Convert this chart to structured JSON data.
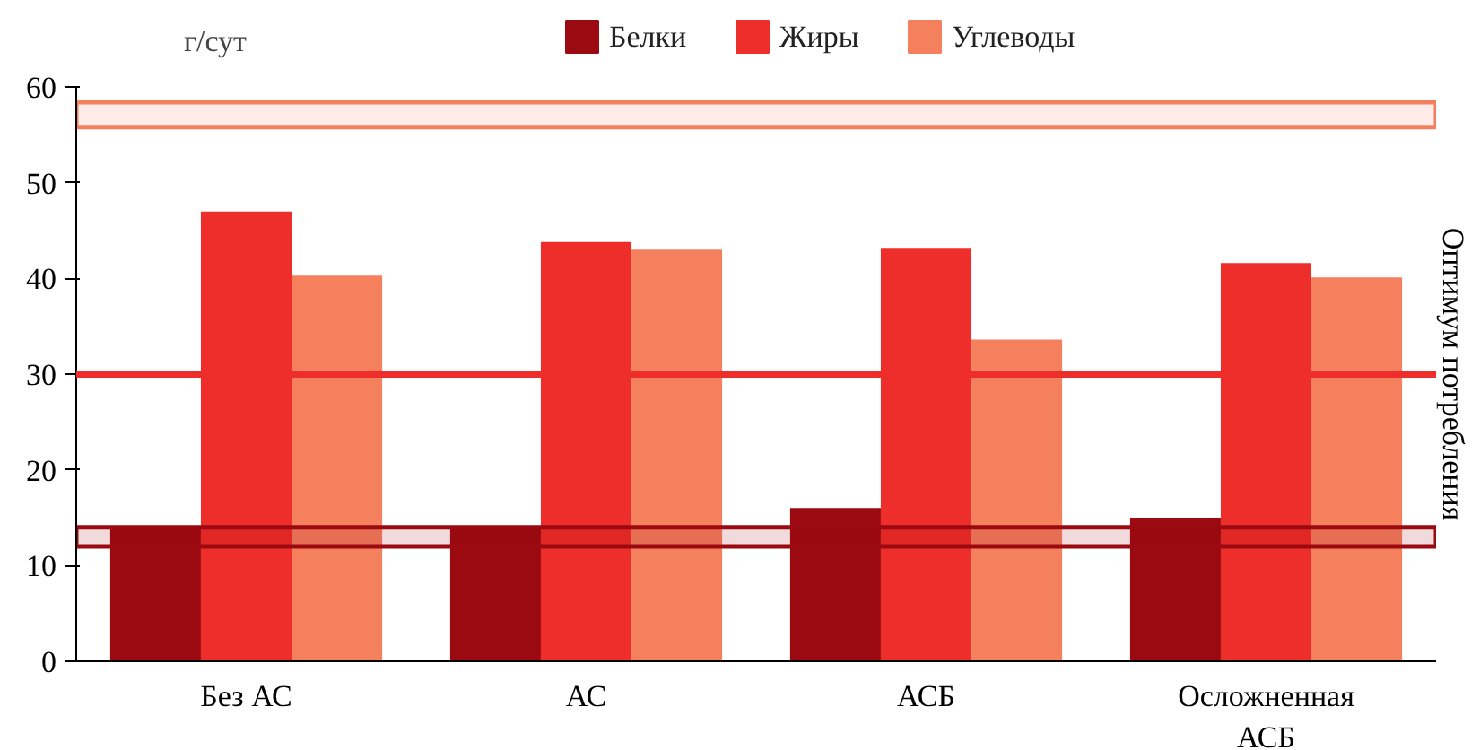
{
  "chart_data": {
    "type": "bar",
    "ylabel": "г/сут",
    "categories": [
      "Без АС",
      "АС",
      "АСБ",
      "Осложненная АСБ"
    ],
    "series": [
      {
        "name": "Белки",
        "color": "#9b0a10",
        "values": [
          14,
          14,
          16,
          15
        ]
      },
      {
        "name": "Жиры",
        "color": "#ee2e2a",
        "values": [
          47,
          43.8,
          43.2,
          41.6
        ]
      },
      {
        "name": "Углеводы",
        "color": "#f4805e",
        "values": [
          40.3,
          43,
          33.6,
          40.1
        ]
      }
    ],
    "ylim": [
      0,
      60
    ],
    "yticks": [
      0,
      10,
      20,
      30,
      40,
      50,
      60
    ],
    "grid": false,
    "legend": "top",
    "ref_lines": [
      {
        "axis": "y",
        "value": 30,
        "color": "#ee2e2a"
      }
    ],
    "bands": [
      {
        "axis": "y",
        "from": 55.8,
        "to": 58.4,
        "color": "#f4805e"
      },
      {
        "axis": "y",
        "from": 12,
        "to": 14,
        "color": "#9b0a10"
      }
    ],
    "annotations": [
      "Оптимум потребления"
    ]
  }
}
